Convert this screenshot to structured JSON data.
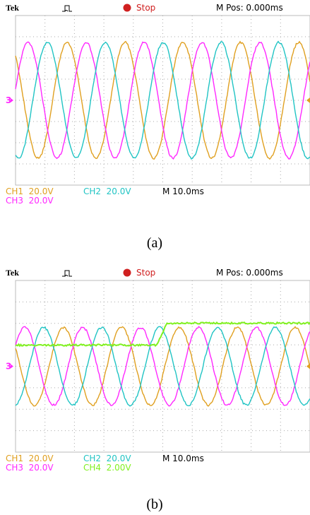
{
  "figures": [
    {
      "header": {
        "brand": "Tek",
        "status": "Stop",
        "position": "M Pos: 0.000ms"
      },
      "channels": [
        "CH1  20.0V",
        "CH2  20.0V",
        "CH3  20.0V"
      ],
      "timebase": "M 10.0ms",
      "marker": "3",
      "caption": "(a)"
    },
    {
      "header": {
        "brand": "Tek",
        "status": "Stop",
        "position": "M Pos: 0.000ms"
      },
      "channels": [
        "CH1  20.0V",
        "CH2  20.0V",
        "CH3  20.0V",
        "CH4  2.00V"
      ],
      "timebase": "M 10.0ms",
      "marker": "3",
      "caption": "(b)"
    }
  ]
}
